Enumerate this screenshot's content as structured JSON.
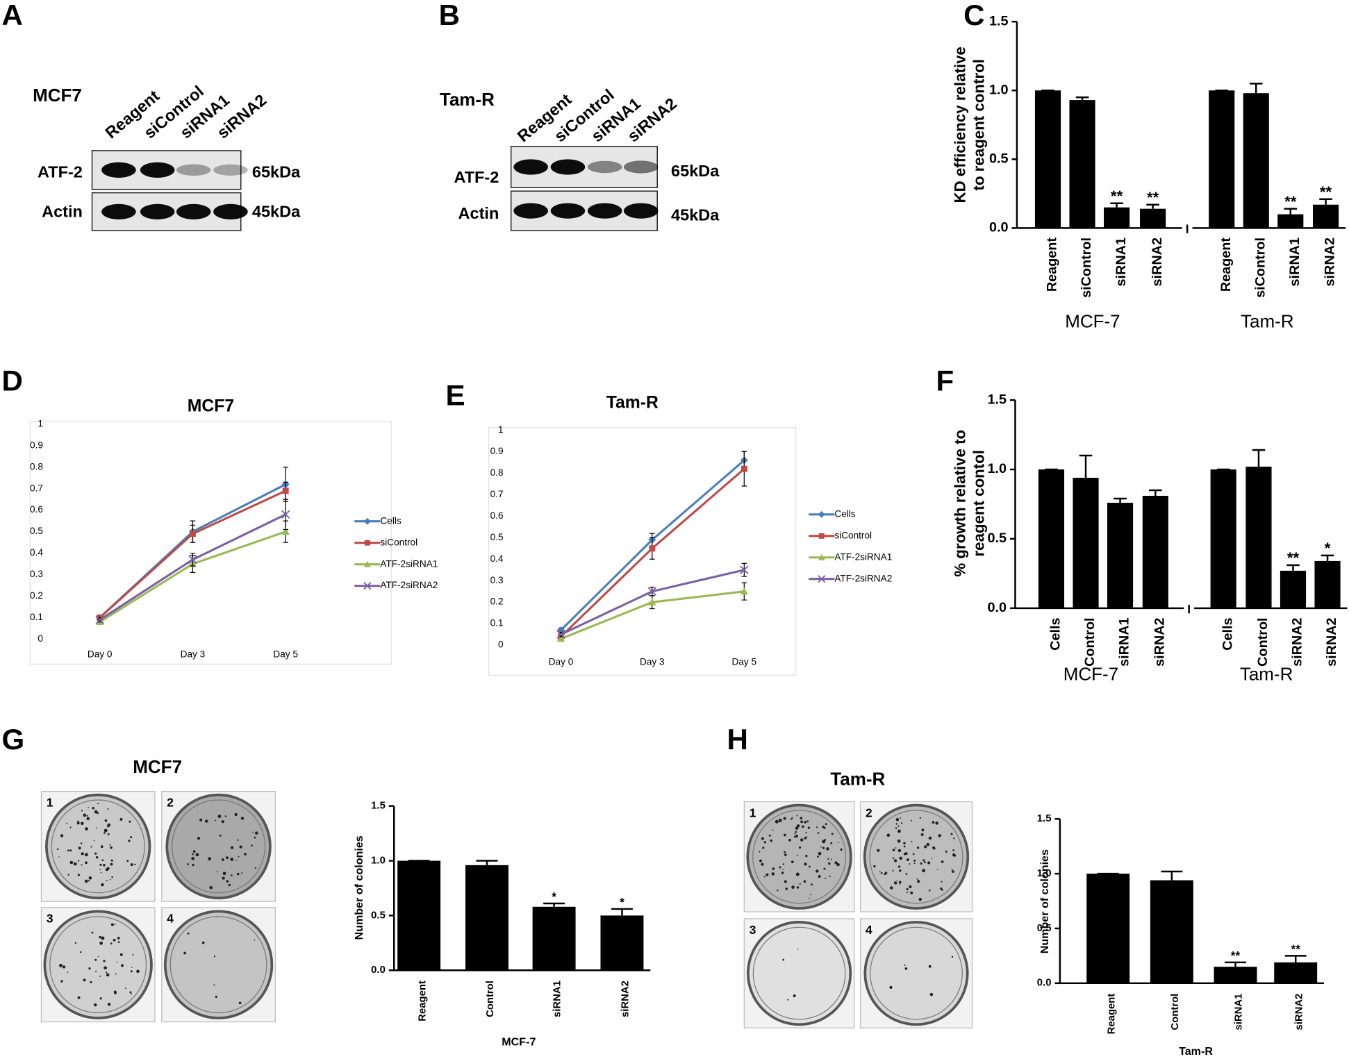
{
  "panel_labels": [
    "A",
    "B",
    "C",
    "D",
    "E",
    "F",
    "G",
    "H"
  ],
  "blots": [
    {
      "cell_line": "MCF7",
      "lanes": [
        "Reagent",
        "siControl",
        "siRNA1",
        "siRNA2"
      ],
      "rows": [
        {
          "protein": "ATF-2",
          "size": "65kDa"
        },
        {
          "protein": "Actin",
          "size": "45kDa"
        }
      ]
    },
    {
      "cell_line": "Tam-R",
      "lanes": [
        "Reagent",
        "siControl",
        "siRNA1",
        "siRNA2"
      ],
      "rows": [
        {
          "protein": "ATF-2",
          "size": "65kDa"
        },
        {
          "protein": "Actin",
          "size": "45kDa"
        }
      ]
    }
  ],
  "colony_plates": [
    {
      "title": "MCF7",
      "wells": [
        "1",
        "2",
        "3",
        "4"
      ]
    },
    {
      "title": "Tam-R",
      "wells": [
        "1",
        "2",
        "3",
        "4"
      ]
    }
  ],
  "chart_data": [
    {
      "type": "bar",
      "ylabel": [
        "KD efficiency relative",
        "to reagent control"
      ],
      "categories": [
        "Reagent",
        "siControl",
        "siRNA1",
        "siRNA2",
        "Reagent",
        "siControl",
        "siRNA1",
        "siRNA2"
      ],
      "groups": [
        "MCF-7",
        "Tam-R"
      ],
      "values": [
        1.0,
        0.93,
        0.15,
        0.14,
        1.0,
        0.98,
        0.1,
        0.17
      ],
      "errors": [
        0,
        0.02,
        0.03,
        0.03,
        0,
        0.07,
        0.04,
        0.04
      ],
      "annotations": [
        null,
        null,
        "**",
        "**",
        null,
        null,
        "**",
        "**"
      ],
      "color": "#000000",
      "ylim": [
        0,
        1.5
      ],
      "yticks": [
        {
          "value": 0,
          "label": "0.0"
        },
        0.5,
        {
          "value": 1,
          "label": "1.0"
        },
        1.5
      ]
    },
    {
      "type": "line",
      "title": "MCF7",
      "categories": [
        "Day 0",
        "Day 3",
        "Day 5"
      ],
      "series": [
        {
          "name": "Cells",
          "color": "#4a7ebb",
          "values": [
            0.1,
            0.5,
            0.72
          ],
          "errors": [
            0.01,
            0.05,
            0.08
          ]
        },
        {
          "name": "siControl",
          "color": "#be4b48",
          "values": [
            0.1,
            0.49,
            0.69
          ],
          "errors": [
            0.01,
            0.04,
            0.04
          ]
        },
        {
          "name": "ATF-2siRNA1",
          "color": "#98b954",
          "values": [
            0.08,
            0.35,
            0.5
          ],
          "errors": [
            0.01,
            0.04,
            0.05
          ]
        },
        {
          "name": "ATF-2siRNA2",
          "color": "#7d60a0",
          "values": [
            0.09,
            0.37,
            0.58
          ],
          "errors": [
            0.01,
            0.03,
            0.07
          ]
        }
      ],
      "ylim": [
        0,
        1
      ],
      "yticks": [
        0,
        0.1,
        0.2,
        0.3,
        0.4,
        0.5,
        0.6,
        0.7,
        0.8,
        0.9,
        1
      ],
      "legend": "right"
    },
    {
      "type": "line",
      "title": "Tam-R",
      "categories": [
        "Day 0",
        "Day 3",
        "Day 5"
      ],
      "series": [
        {
          "name": "Cells",
          "color": "#4a7ebb",
          "values": [
            0.07,
            0.49,
            0.86
          ],
          "errors": [
            0.01,
            0.03,
            0.04
          ]
        },
        {
          "name": "siControl",
          "color": "#be4b48",
          "values": [
            0.04,
            0.45,
            0.82
          ],
          "errors": [
            0.01,
            0.05,
            0.08
          ]
        },
        {
          "name": "ATF-2siRNA1",
          "color": "#98b954",
          "values": [
            0.03,
            0.2,
            0.25
          ],
          "errors": [
            0.01,
            0.03,
            0.04
          ]
        },
        {
          "name": "ATF-2siRNA2",
          "color": "#7d60a0",
          "values": [
            0.05,
            0.25,
            0.35
          ],
          "errors": [
            0.01,
            0.02,
            0.03
          ]
        }
      ],
      "ylim": [
        0,
        1
      ],
      "yticks": [
        0,
        0.1,
        0.2,
        0.3,
        0.4,
        0.5,
        0.6,
        0.7,
        0.8,
        0.9,
        1
      ],
      "legend": "right"
    },
    {
      "type": "bar",
      "ylabel": [
        "% growth relative to",
        "reagent contol"
      ],
      "categories": [
        "Cells",
        "Control",
        "siRNA1",
        "siRNA2",
        "Cells",
        "Control",
        "siRNA2",
        "siRNA2"
      ],
      "groups": [
        "MCF-7",
        "Tam-R"
      ],
      "values": [
        1.0,
        0.94,
        0.76,
        0.81,
        1.0,
        1.02,
        0.27,
        0.34
      ],
      "errors": [
        0,
        0.16,
        0.03,
        0.04,
        0,
        0.12,
        0.04,
        0.04
      ],
      "annotations": [
        null,
        null,
        null,
        null,
        null,
        null,
        "**",
        "*"
      ],
      "color": "#000000",
      "ylim": [
        0,
        1.5
      ],
      "yticks": [
        {
          "value": 0,
          "label": "0.0"
        },
        0.5,
        {
          "value": 1,
          "label": "1.0"
        },
        1.5
      ]
    },
    {
      "type": "bar",
      "ylabel": "Number of colonies",
      "xlabel": "MCF-7",
      "categories": [
        "Reagent",
        "Control",
        "siRNA1",
        "siRNA2"
      ],
      "values": [
        1.0,
        0.96,
        0.58,
        0.5
      ],
      "errors": [
        0,
        0.04,
        0.03,
        0.06
      ],
      "annotations": [
        null,
        null,
        "*",
        "*"
      ],
      "color": "#000000",
      "ylim": [
        0,
        1.5
      ],
      "yticks": [
        {
          "value": 0,
          "label": "0.0"
        },
        0.5,
        {
          "value": 1,
          "label": "1.0"
        },
        1.5
      ]
    },
    {
      "type": "bar",
      "ylabel": "Number of colonies",
      "xlabel": "Tam-R",
      "categories": [
        "Reagent",
        "Control",
        "siRNA1",
        "siRNA2"
      ],
      "values": [
        1.0,
        0.94,
        0.15,
        0.19
      ],
      "errors": [
        0,
        0.08,
        0.04,
        0.06
      ],
      "annotations": [
        null,
        null,
        "**",
        "**"
      ],
      "color": "#000000",
      "ylim": [
        0,
        1.5
      ],
      "yticks": [
        {
          "value": 0,
          "label": "0.0"
        },
        0.5,
        {
          "value": 1,
          "label": "1.0"
        },
        1.5
      ]
    }
  ]
}
